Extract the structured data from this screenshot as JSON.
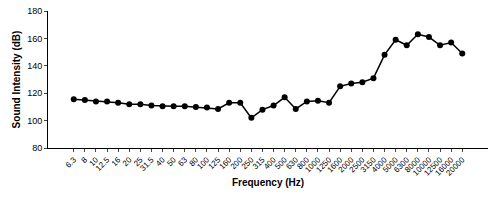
{
  "chart_data": {
    "type": "line",
    "x_label": "Frequency (Hz)",
    "y_label": "Sound Intensity (dB)",
    "categories": [
      "6.3",
      "8",
      "10",
      "12.5",
      "16",
      "20",
      "25",
      "31.5",
      "40",
      "50",
      "63",
      "80",
      "100",
      "125",
      "160",
      "200",
      "250",
      "315",
      "400",
      "500",
      "630",
      "800",
      "1000",
      "1250",
      "1600",
      "2000",
      "2500",
      "3150",
      "4000",
      "5000",
      "6300",
      "8000",
      "10000",
      "12500",
      "16000",
      "20000"
    ],
    "values": [
      115.5,
      115,
      114,
      114,
      113,
      112,
      112,
      111,
      110.5,
      110.5,
      110.5,
      110,
      109.5,
      108.5,
      113,
      113,
      102,
      108,
      111,
      117,
      108.5,
      114,
      114.5,
      113,
      125,
      127,
      128,
      131,
      148,
      159,
      155,
      163,
      161,
      155,
      157,
      149
    ],
    "color": "#000000",
    "marker": "circle",
    "ylim": [
      80,
      180
    ],
    "yticks": [
      80,
      100,
      120,
      140,
      160,
      180
    ],
    "grid": false
  }
}
